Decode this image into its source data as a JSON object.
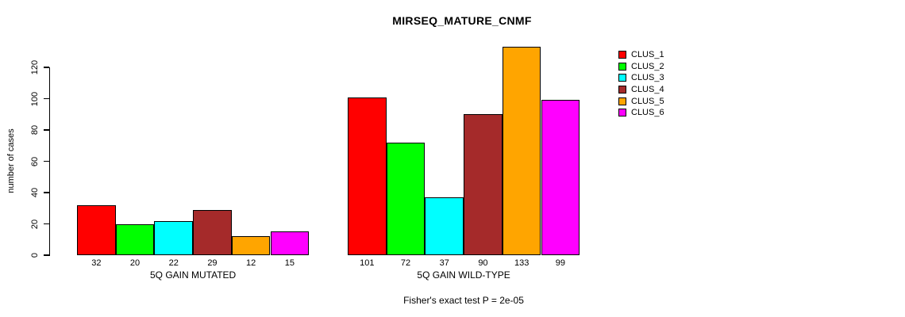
{
  "chart_data": {
    "type": "bar",
    "title": "MIRSEQ_MATURE_CNMF",
    "ylabel": "number of cases",
    "xlabel": "",
    "annotation": "Fisher's exact test P = 2e-05",
    "series_names": [
      "CLUS_1",
      "CLUS_2",
      "CLUS_3",
      "CLUS_4",
      "CLUS_5",
      "CLUS_6"
    ],
    "colors": [
      "#FF0000",
      "#00FF00",
      "#00FFFF",
      "#A52A2A",
      "#FFA500",
      "#FF00FF"
    ],
    "groups": [
      {
        "label": "5Q GAIN MUTATED",
        "values": [
          32,
          20,
          22,
          29,
          12,
          15
        ]
      },
      {
        "label": "5Q GAIN WILD-TYPE",
        "values": [
          101,
          72,
          37,
          90,
          133,
          99
        ]
      }
    ],
    "yticks": [
      0,
      20,
      40,
      60,
      80,
      100,
      120
    ],
    "ylim": [
      0,
      140
    ],
    "grid": false,
    "legend_position": "right",
    "bar_labels_shown": true
  },
  "legend": {
    "items": [
      {
        "label": "CLUS_1",
        "color": "#FF0000"
      },
      {
        "label": "CLUS_2",
        "color": "#00FF00"
      },
      {
        "label": "CLUS_3",
        "color": "#00FFFF"
      },
      {
        "label": "CLUS_4",
        "color": "#A52A2A"
      },
      {
        "label": "CLUS_5",
        "color": "#FFA500"
      },
      {
        "label": "CLUS_6",
        "color": "#FF00FF"
      }
    ]
  }
}
